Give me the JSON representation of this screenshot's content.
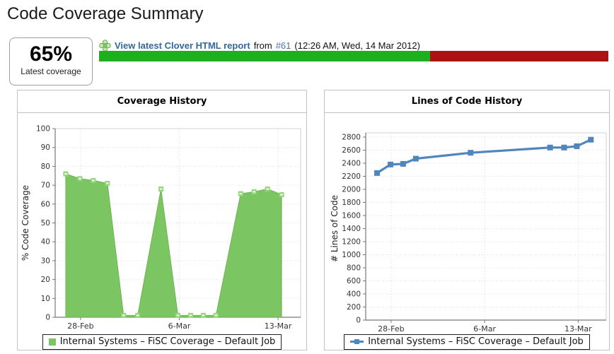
{
  "page": {
    "title": "Code Coverage Summary"
  },
  "header": {
    "coverage_percent": "65%",
    "coverage_caption": "Latest coverage",
    "clover_icon": "clover-icon",
    "link_text": "View latest Clover HTML report",
    "link_from": "from",
    "build_link": "#61",
    "build_time": "(12:26 AM, Wed, 14 Mar 2012)",
    "progress_percent": 65
  },
  "colors": {
    "bar_green": "#1cb11c",
    "bar_red": "#ad1111",
    "area_green": "#7cc563",
    "area_stroke": "#6cb551",
    "area_marker": "#93d67c",
    "line_blue": "#4e86bd",
    "grid": "#d9d9d9",
    "axis": "#777777",
    "tick_text": "#333333"
  },
  "chart_data": [
    {
      "type": "area",
      "title": "Coverage History",
      "ylabel": "% Code Coverage",
      "ylim": [
        0,
        100
      ],
      "ytick_step": 10,
      "xlim": [
        -1.8,
        15.6
      ],
      "xticks": [
        {
          "x": 0,
          "label": "28-Feb"
        },
        {
          "x": 7,
          "label": "6-Mar"
        },
        {
          "x": 14,
          "label": "13-Mar"
        }
      ],
      "legend": "Internal Systems – FiSC Coverage – Default Job",
      "legend_position": "bottom",
      "grid": true,
      "points": [
        {
          "x": -1.05,
          "y": 76
        },
        {
          "x": -0.05,
          "y": 73.5
        },
        {
          "x": 0.9,
          "y": 72.5
        },
        {
          "x": 1.9,
          "y": 71
        },
        {
          "x": 3.05,
          "y": 1
        },
        {
          "x": 4.05,
          "y": 1
        },
        {
          "x": 5.7,
          "y": 68
        },
        {
          "x": 6.9,
          "y": 1
        },
        {
          "x": 7.8,
          "y": 1
        },
        {
          "x": 8.7,
          "y": 1
        },
        {
          "x": 9.6,
          "y": 1
        },
        {
          "x": 11.35,
          "y": 65.5
        },
        {
          "x": 12.3,
          "y": 66.5
        },
        {
          "x": 13.25,
          "y": 68
        },
        {
          "x": 14.25,
          "y": 65
        }
      ]
    },
    {
      "type": "line",
      "title": "Lines of Code History",
      "ylabel": "# Lines of Code",
      "ylim": [
        0,
        2800
      ],
      "ytick_step": 200,
      "xlim": [
        -1.9,
        16.1
      ],
      "xticks": [
        {
          "x": 0,
          "label": "28-Feb"
        },
        {
          "x": 7,
          "label": "6-Mar"
        },
        {
          "x": 14,
          "label": "13-Mar"
        }
      ],
      "legend": "Internal Systems – FiSC Coverage – Default Job",
      "legend_position": "bottom",
      "grid": true,
      "points": [
        {
          "x": -1.05,
          "y": 2250
        },
        {
          "x": -0.05,
          "y": 2380
        },
        {
          "x": 0.9,
          "y": 2390
        },
        {
          "x": 1.85,
          "y": 2470
        },
        {
          "x": 5.95,
          "y": 2560
        },
        {
          "x": 11.9,
          "y": 2640
        },
        {
          "x": 12.95,
          "y": 2640
        },
        {
          "x": 13.9,
          "y": 2660
        },
        {
          "x": 14.95,
          "y": 2760
        }
      ]
    }
  ]
}
